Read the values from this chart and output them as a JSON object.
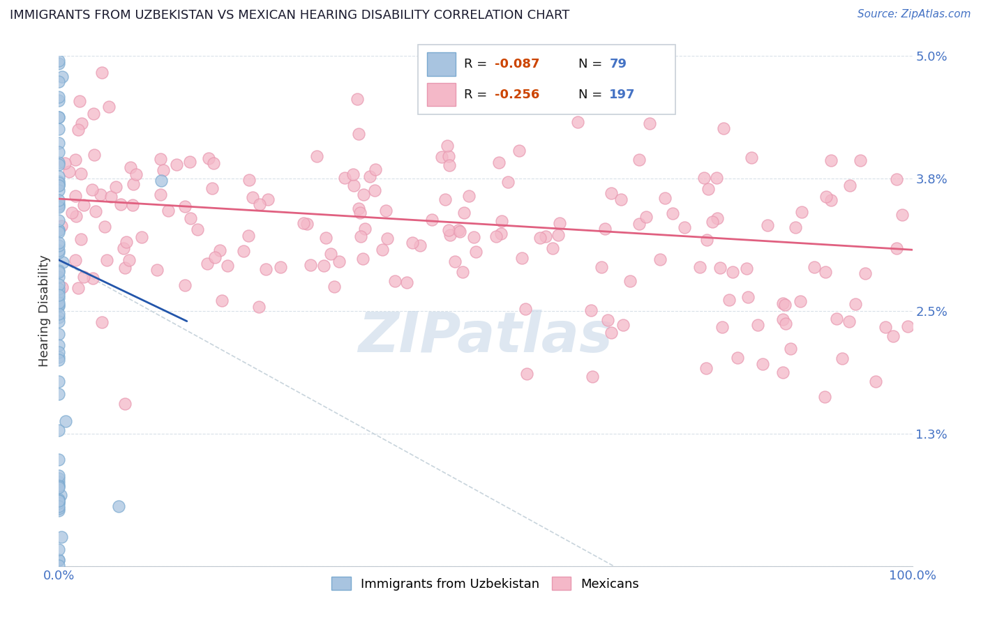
{
  "title": "IMMIGRANTS FROM UZBEKISTAN VS MEXICAN HEARING DISABILITY CORRELATION CHART",
  "source": "Source: ZipAtlas.com",
  "ylabel": "Hearing Disability",
  "xlim": [
    0.0,
    1.0
  ],
  "ylim": [
    0.0,
    0.05
  ],
  "ytick_vals": [
    0.0,
    0.013,
    0.025,
    0.038,
    0.05
  ],
  "ytick_labels": [
    "",
    "1.3%",
    "2.5%",
    "3.8%",
    "5.0%"
  ],
  "xtick_vals": [
    0.0,
    0.1,
    0.2,
    0.3,
    0.4,
    0.5,
    0.6,
    0.7,
    0.8,
    0.9,
    1.0
  ],
  "xtick_labels": [
    "0.0%",
    "",
    "",
    "",
    "",
    "",
    "",
    "",
    "",
    "",
    "100.0%"
  ],
  "legend_box_text": [
    {
      "color_box": "#a8c4e0",
      "R": "-0.087",
      "N": "79"
    },
    {
      "color_box": "#f4b8c8",
      "R": "-0.256",
      "N": "197"
    }
  ],
  "uzbek_color": "#a8c4e0",
  "uzbek_edge_color": "#7baad0",
  "mexican_color": "#f4b8c8",
  "mexican_edge_color": "#e898b0",
  "uzbek_line_color": "#2255aa",
  "mexican_line_color": "#e06080",
  "dash_line_color": "#c8d4dc",
  "watermark": "ZIPatlas",
  "watermark_color": "#c8d8e8",
  "background_color": "#ffffff",
  "grid_color": "#d8e0e8",
  "title_color": "#1a1a2e",
  "source_color": "#4472c4",
  "tick_color": "#4472c4",
  "ylabel_color": "#333333"
}
